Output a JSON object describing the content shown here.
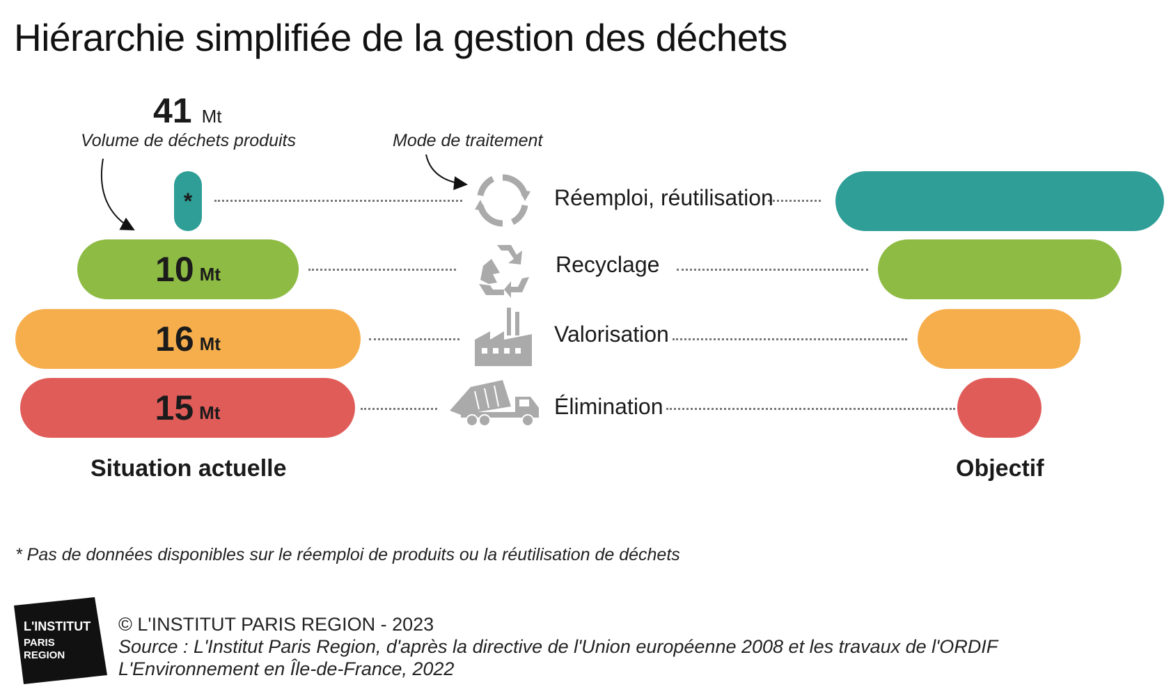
{
  "title": "Hiérarchie simplifiée de la gestion des déchets",
  "total": {
    "value": "41",
    "unit": "Mt",
    "caption": "Volume de déchets produits"
  },
  "mode_caption": "Mode de traitement",
  "levels": [
    {
      "name": "Réemploi, réutilisation",
      "value": "*",
      "unit": "",
      "icon": "reuse-cycle-icon",
      "color": "#2e9e96"
    },
    {
      "name": "Recyclage",
      "value": "10",
      "unit": "Mt",
      "icon": "recycle-icon",
      "color": "#8dbb43"
    },
    {
      "name": "Valorisation",
      "value": "16",
      "unit": "Mt",
      "icon": "factory-icon",
      "color": "#f6ae4c"
    },
    {
      "name": "Élimination",
      "value": "15",
      "unit": "Mt",
      "icon": "dump-truck-icon",
      "color": "#e05c59"
    }
  ],
  "left_label": "Situation actuelle",
  "right_label": "Objectif",
  "footnote": "* Pas de données disponibles sur le réemploi de produits ou la réutilisation de déchets",
  "logo": {
    "line1": "L'INSTITUT",
    "line2": "PARIS",
    "line3": "REGION"
  },
  "credits": {
    "copyright": "© L'INSTITUT PARIS REGION - 2023",
    "source": "Source : L'Institut Paris Region, d'après la directive de l'Union européenne 2008 et les travaux de l'ORDIF",
    "publication": "L'Environnement en Île-de-France, 2022"
  }
}
